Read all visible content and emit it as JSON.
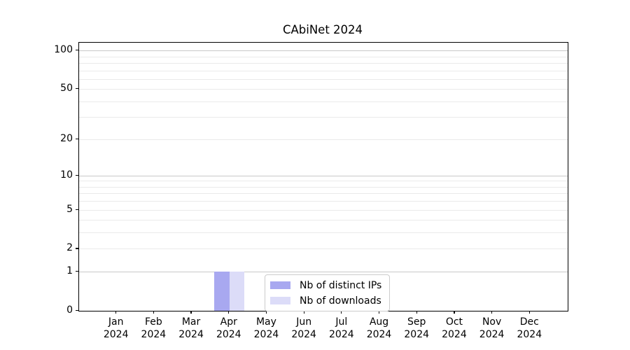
{
  "figure": {
    "background": "#ffffff"
  },
  "chart_data": {
    "type": "bar",
    "title": "CAbiNet 2024",
    "categories": [
      "Jan",
      "Feb",
      "Mar",
      "Apr",
      "May",
      "Jun",
      "Jul",
      "Aug",
      "Sep",
      "Oct",
      "Nov",
      "Dec"
    ],
    "year_label": "2024",
    "series": [
      {
        "name": "Nb of distinct IPs",
        "color": "#a8a8f0",
        "values": [
          0,
          0,
          0,
          1,
          0,
          0,
          0,
          0,
          0,
          0,
          0,
          0
        ]
      },
      {
        "name": "Nb of downloads",
        "color": "#dcdcf8",
        "values": [
          0,
          0,
          0,
          1,
          0,
          0,
          0,
          0,
          0,
          0,
          0,
          0
        ]
      }
    ],
    "xlabel": "",
    "ylabel": "",
    "yscale": "log1p",
    "ylim": [
      0,
      115
    ],
    "yticks": [
      0,
      1,
      2,
      5,
      10,
      20,
      50,
      100
    ],
    "major_gridlines": [
      1,
      10,
      100
    ],
    "minor_gridlines": [
      2,
      3,
      4,
      5,
      6,
      7,
      8,
      9,
      20,
      30,
      40,
      50,
      60,
      70,
      80,
      90
    ],
    "grid": true,
    "legend_position": "inside-bottom-center"
  },
  "colors": {
    "axis": "#000000",
    "major_grid": "#c9c9c9",
    "minor_grid": "#eaeaea",
    "legend_border": "#cccccc"
  }
}
